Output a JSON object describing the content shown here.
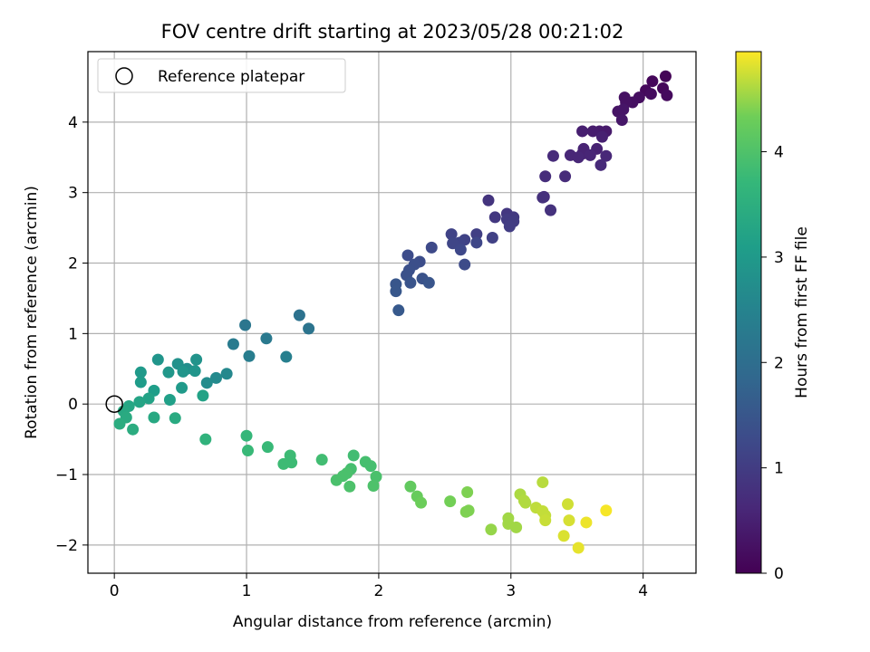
{
  "chart_data": {
    "type": "scatter",
    "title": "FOV centre drift starting at 2023/05/28 00:21:02",
    "xlabel": "Angular distance from reference (arcmin)",
    "ylabel": "Rotation from reference (arcmin)",
    "xlim": [
      -0.2,
      4.4
    ],
    "ylim": [
      -2.4,
      5.0
    ],
    "xticks": [
      0,
      1,
      2,
      3,
      4
    ],
    "yticks": [
      -2,
      -1,
      0,
      1,
      2,
      3,
      4
    ],
    "grid": true,
    "legend": {
      "position": "top-left",
      "entries": [
        "Reference platepar"
      ]
    },
    "reference_point": {
      "x": 0,
      "y": 0
    },
    "colorbar": {
      "label": "Hours from first FF file",
      "colormap": "viridis",
      "range": [
        0,
        4.95
      ],
      "ticks": [
        0,
        1,
        2,
        3,
        4
      ]
    },
    "points": [
      {
        "x": 4.17,
        "y": 4.65,
        "c": 0.05
      },
      {
        "x": 4.07,
        "y": 4.58,
        "c": 0.1
      },
      {
        "x": 4.02,
        "y": 4.45,
        "c": 0.12
      },
      {
        "x": 4.15,
        "y": 4.48,
        "c": 0.08
      },
      {
        "x": 4.18,
        "y": 4.38,
        "c": 0.15
      },
      {
        "x": 4.06,
        "y": 4.4,
        "c": 0.18
      },
      {
        "x": 3.97,
        "y": 4.35,
        "c": 0.2
      },
      {
        "x": 3.92,
        "y": 4.28,
        "c": 0.22
      },
      {
        "x": 3.86,
        "y": 4.35,
        "c": 0.25
      },
      {
        "x": 3.87,
        "y": 4.28,
        "c": 0.25
      },
      {
        "x": 3.81,
        "y": 4.15,
        "c": 0.3
      },
      {
        "x": 3.85,
        "y": 4.18,
        "c": 0.32
      },
      {
        "x": 3.84,
        "y": 4.03,
        "c": 0.35
      },
      {
        "x": 3.72,
        "y": 3.87,
        "c": 0.4
      },
      {
        "x": 3.67,
        "y": 3.87,
        "c": 0.42
      },
      {
        "x": 3.62,
        "y": 3.87,
        "c": 0.45
      },
      {
        "x": 3.54,
        "y": 3.87,
        "c": 0.48
      },
      {
        "x": 3.69,
        "y": 3.79,
        "c": 0.5
      },
      {
        "x": 3.65,
        "y": 3.62,
        "c": 0.52
      },
      {
        "x": 3.55,
        "y": 3.62,
        "c": 0.55
      },
      {
        "x": 3.54,
        "y": 3.55,
        "c": 0.55
      },
      {
        "x": 3.6,
        "y": 3.53,
        "c": 0.58
      },
      {
        "x": 3.45,
        "y": 3.53,
        "c": 0.6
      },
      {
        "x": 3.51,
        "y": 3.5,
        "c": 0.6
      },
      {
        "x": 3.72,
        "y": 3.52,
        "c": 0.62
      },
      {
        "x": 3.68,
        "y": 3.39,
        "c": 0.65
      },
      {
        "x": 3.32,
        "y": 3.52,
        "c": 0.68
      },
      {
        "x": 3.41,
        "y": 3.23,
        "c": 0.7
      },
      {
        "x": 3.26,
        "y": 3.23,
        "c": 0.72
      },
      {
        "x": 3.25,
        "y": 2.94,
        "c": 0.75
      },
      {
        "x": 3.24,
        "y": 2.93,
        "c": 0.78
      },
      {
        "x": 3.3,
        "y": 2.75,
        "c": 0.8
      },
      {
        "x": 2.83,
        "y": 2.89,
        "c": 0.85
      },
      {
        "x": 2.97,
        "y": 2.7,
        "c": 0.9
      },
      {
        "x": 2.88,
        "y": 2.65,
        "c": 0.92
      },
      {
        "x": 3.02,
        "y": 2.65,
        "c": 0.95
      },
      {
        "x": 2.97,
        "y": 2.62,
        "c": 0.98
      },
      {
        "x": 3.02,
        "y": 2.59,
        "c": 1.0
      },
      {
        "x": 2.99,
        "y": 2.52,
        "c": 1.02
      },
      {
        "x": 2.74,
        "y": 2.41,
        "c": 1.05
      },
      {
        "x": 2.86,
        "y": 2.36,
        "c": 1.08
      },
      {
        "x": 2.65,
        "y": 2.33,
        "c": 1.1
      },
      {
        "x": 2.55,
        "y": 2.41,
        "c": 1.12
      },
      {
        "x": 2.61,
        "y": 2.29,
        "c": 1.15
      },
      {
        "x": 2.56,
        "y": 2.28,
        "c": 1.18
      },
      {
        "x": 2.74,
        "y": 2.29,
        "c": 1.2
      },
      {
        "x": 2.62,
        "y": 2.19,
        "c": 1.22
      },
      {
        "x": 2.4,
        "y": 2.22,
        "c": 1.25
      },
      {
        "x": 2.65,
        "y": 1.98,
        "c": 1.28
      },
      {
        "x": 2.22,
        "y": 2.11,
        "c": 1.3
      },
      {
        "x": 2.31,
        "y": 2.02,
        "c": 1.32
      },
      {
        "x": 2.27,
        "y": 1.98,
        "c": 1.35
      },
      {
        "x": 2.23,
        "y": 1.9,
        "c": 1.38
      },
      {
        "x": 2.21,
        "y": 1.83,
        "c": 1.4
      },
      {
        "x": 2.33,
        "y": 1.78,
        "c": 1.42
      },
      {
        "x": 2.24,
        "y": 1.72,
        "c": 1.45
      },
      {
        "x": 2.38,
        "y": 1.72,
        "c": 1.48
      },
      {
        "x": 2.13,
        "y": 1.7,
        "c": 1.5
      },
      {
        "x": 2.13,
        "y": 1.6,
        "c": 1.52
      },
      {
        "x": 2.15,
        "y": 1.33,
        "c": 1.55
      },
      {
        "x": 1.4,
        "y": 1.26,
        "c": 2.1
      },
      {
        "x": 1.47,
        "y": 1.07,
        "c": 2.15
      },
      {
        "x": 0.99,
        "y": 1.12,
        "c": 2.2
      },
      {
        "x": 1.15,
        "y": 0.93,
        "c": 2.25
      },
      {
        "x": 0.9,
        "y": 0.85,
        "c": 2.3
      },
      {
        "x": 1.02,
        "y": 0.68,
        "c": 2.35
      },
      {
        "x": 1.3,
        "y": 0.67,
        "c": 2.4
      },
      {
        "x": 0.33,
        "y": 0.63,
        "c": 2.9
      },
      {
        "x": 0.62,
        "y": 0.63,
        "c": 2.85
      },
      {
        "x": 0.48,
        "y": 0.57,
        "c": 2.8
      },
      {
        "x": 0.55,
        "y": 0.5,
        "c": 2.75
      },
      {
        "x": 0.52,
        "y": 0.46,
        "c": 2.9
      },
      {
        "x": 0.41,
        "y": 0.45,
        "c": 2.95
      },
      {
        "x": 0.61,
        "y": 0.47,
        "c": 2.9
      },
      {
        "x": 0.2,
        "y": 0.45,
        "c": 3.0
      },
      {
        "x": 0.85,
        "y": 0.43,
        "c": 2.6
      },
      {
        "x": 0.77,
        "y": 0.37,
        "c": 2.65
      },
      {
        "x": 0.7,
        "y": 0.3,
        "c": 2.7
      },
      {
        "x": 0.2,
        "y": 0.31,
        "c": 3.05
      },
      {
        "x": 0.51,
        "y": 0.23,
        "c": 3.0
      },
      {
        "x": 0.3,
        "y": 0.19,
        "c": 3.1
      },
      {
        "x": 0.67,
        "y": 0.12,
        "c": 3.2
      },
      {
        "x": 0.26,
        "y": 0.08,
        "c": 3.2
      },
      {
        "x": 0.42,
        "y": 0.06,
        "c": 3.15
      },
      {
        "x": 0.19,
        "y": 0.03,
        "c": 3.25
      },
      {
        "x": 0.11,
        "y": -0.03,
        "c": 3.3
      },
      {
        "x": 0.07,
        "y": -0.1,
        "c": 3.35
      },
      {
        "x": 0.09,
        "y": -0.19,
        "c": 3.4
      },
      {
        "x": 0.3,
        "y": -0.19,
        "c": 3.35
      },
      {
        "x": 0.46,
        "y": -0.2,
        "c": 3.4
      },
      {
        "x": 0.04,
        "y": -0.28,
        "c": 3.45
      },
      {
        "x": 0.14,
        "y": -0.36,
        "c": 3.45
      },
      {
        "x": 0.69,
        "y": -0.5,
        "c": 3.6
      },
      {
        "x": 1.0,
        "y": -0.45,
        "c": 3.7
      },
      {
        "x": 1.16,
        "y": -0.61,
        "c": 3.75
      },
      {
        "x": 1.01,
        "y": -0.66,
        "c": 3.75
      },
      {
        "x": 1.33,
        "y": -0.73,
        "c": 3.8
      },
      {
        "x": 1.34,
        "y": -0.83,
        "c": 3.8
      },
      {
        "x": 1.28,
        "y": -0.85,
        "c": 3.8
      },
      {
        "x": 1.57,
        "y": -0.79,
        "c": 3.85
      },
      {
        "x": 1.81,
        "y": -0.73,
        "c": 3.85
      },
      {
        "x": 1.9,
        "y": -0.82,
        "c": 3.9
      },
      {
        "x": 1.94,
        "y": -0.88,
        "c": 3.9
      },
      {
        "x": 1.79,
        "y": -0.92,
        "c": 3.9
      },
      {
        "x": 1.76,
        "y": -0.98,
        "c": 3.95
      },
      {
        "x": 1.73,
        "y": -1.02,
        "c": 3.95
      },
      {
        "x": 1.98,
        "y": -1.03,
        "c": 3.95
      },
      {
        "x": 1.68,
        "y": -1.08,
        "c": 3.95
      },
      {
        "x": 1.78,
        "y": -1.17,
        "c": 3.98
      },
      {
        "x": 1.96,
        "y": -1.16,
        "c": 3.98
      },
      {
        "x": 2.24,
        "y": -1.17,
        "c": 4.2
      },
      {
        "x": 2.29,
        "y": -1.31,
        "c": 4.25
      },
      {
        "x": 2.32,
        "y": -1.4,
        "c": 4.3
      },
      {
        "x": 2.54,
        "y": -1.38,
        "c": 4.35
      },
      {
        "x": 2.67,
        "y": -1.25,
        "c": 4.4
      },
      {
        "x": 2.68,
        "y": -1.51,
        "c": 4.4
      },
      {
        "x": 2.66,
        "y": -1.53,
        "c": 4.4
      },
      {
        "x": 2.85,
        "y": -1.78,
        "c": 4.5
      },
      {
        "x": 2.98,
        "y": -1.62,
        "c": 4.55
      },
      {
        "x": 2.98,
        "y": -1.7,
        "c": 4.55
      },
      {
        "x": 3.04,
        "y": -1.75,
        "c": 4.55
      },
      {
        "x": 3.07,
        "y": -1.28,
        "c": 4.6
      },
      {
        "x": 3.1,
        "y": -1.37,
        "c": 4.62
      },
      {
        "x": 3.11,
        "y": -1.4,
        "c": 4.62
      },
      {
        "x": 3.24,
        "y": -1.11,
        "c": 4.65
      },
      {
        "x": 3.19,
        "y": -1.47,
        "c": 4.68
      },
      {
        "x": 3.24,
        "y": -1.52,
        "c": 4.7
      },
      {
        "x": 3.26,
        "y": -1.58,
        "c": 4.7
      },
      {
        "x": 3.26,
        "y": -1.65,
        "c": 4.72
      },
      {
        "x": 3.43,
        "y": -1.42,
        "c": 4.75
      },
      {
        "x": 3.44,
        "y": -1.65,
        "c": 4.78
      },
      {
        "x": 3.4,
        "y": -1.87,
        "c": 4.8
      },
      {
        "x": 3.51,
        "y": -2.04,
        "c": 4.85
      },
      {
        "x": 3.57,
        "y": -1.68,
        "c": 4.88
      },
      {
        "x": 3.72,
        "y": -1.51,
        "c": 4.92
      }
    ]
  }
}
